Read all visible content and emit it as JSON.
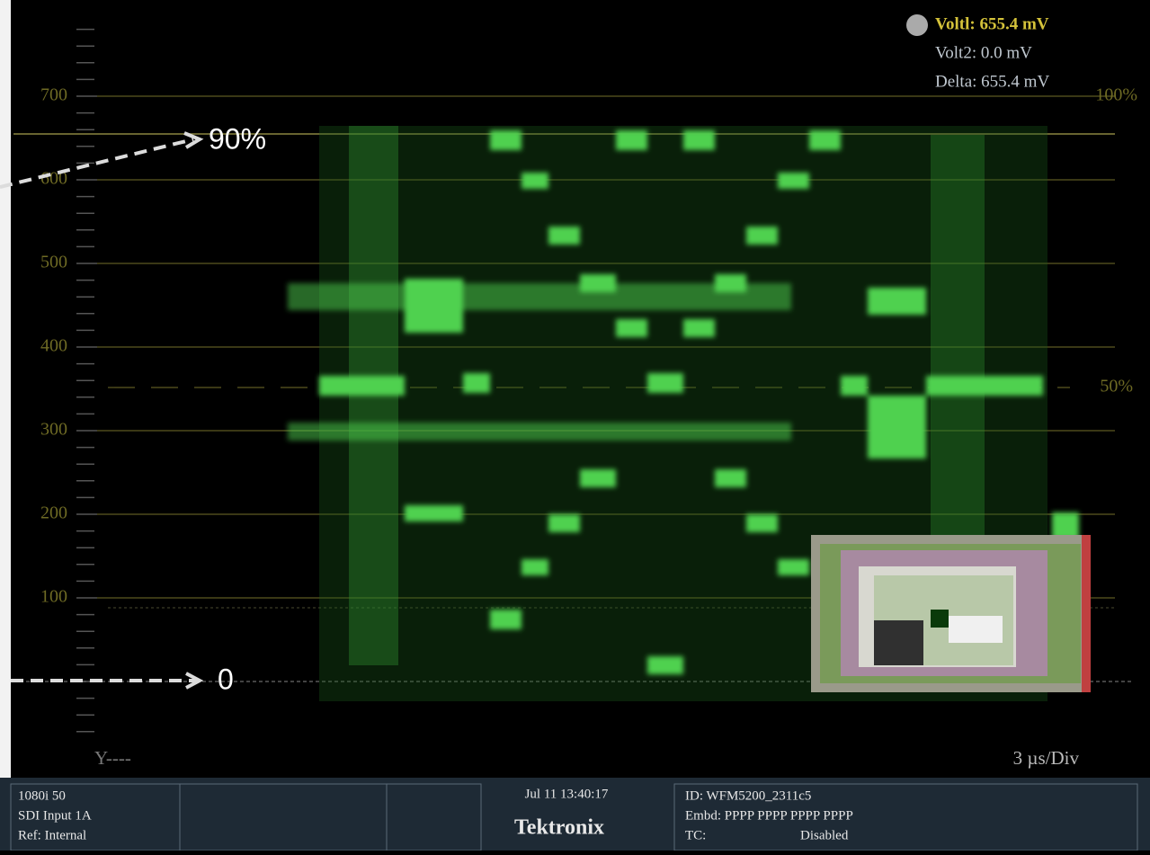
{
  "graticule": {
    "labels": [
      "700",
      "600",
      "500",
      "400",
      "300",
      "200",
      "100"
    ],
    "right_labels": [
      "100%",
      "50%"
    ]
  },
  "cursors": {
    "volt1": "Voltl: 655.4 mV",
    "volt2": "Volt2: 0.0 mV",
    "delta": "Delta: 655.4 mV"
  },
  "annotations": {
    "upper": "90%",
    "lower": "0"
  },
  "channel": "Y----",
  "sweep": "3 µs/Div",
  "status_bar": {
    "format": "1080i 50",
    "input": "SDI Input 1A",
    "ref": "Ref: Internal",
    "datetime": "Jul 11 13:40:17",
    "brand": "Tektronix",
    "id": "ID: WFM5200_2311c5",
    "embd": "Embd: PPPP PPPP PPPP PPPP",
    "tc_label": "TC:",
    "tc_value": "Disabled"
  }
}
